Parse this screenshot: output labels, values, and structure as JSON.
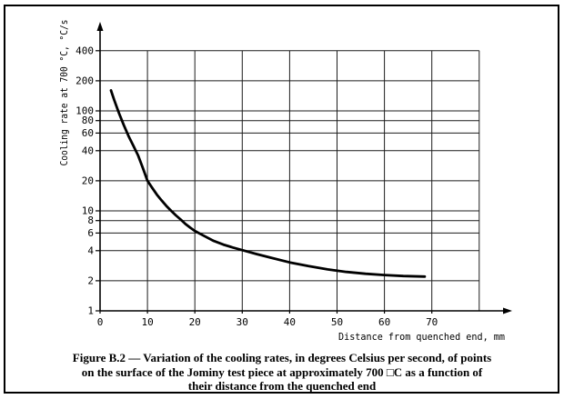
{
  "figure": {
    "caption_lines": [
      "Figure B.2 — Variation of the cooling rates, in degrees Celsius per second, of points",
      "on the surface of the Jominy test piece at approximately 700 □C as a function of",
      "their distance from the quenched end"
    ]
  },
  "chart_data": {
    "type": "line",
    "title": "",
    "xlabel": "Distance from quenched end, mm",
    "ylabel": "Cooling rate at 700 °C, °C/s",
    "x_scale": "linear",
    "y_scale": "log",
    "xlim": [
      0,
      80
    ],
    "ylim": [
      1,
      400
    ],
    "x_ticks": [
      0,
      10,
      20,
      30,
      40,
      50,
      60,
      70
    ],
    "x_grid_max": 80,
    "y_ticks": [
      1,
      2,
      4,
      6,
      8,
      10,
      20,
      40,
      60,
      80,
      100,
      200,
      400
    ],
    "grid": true,
    "legend": "none",
    "series": [
      {
        "name": "cooling-rate-curve",
        "points": [
          [
            2.3,
            160
          ],
          [
            3,
            128
          ],
          [
            4,
            95
          ],
          [
            5,
            72
          ],
          [
            6,
            56
          ],
          [
            7,
            45
          ],
          [
            8,
            36
          ],
          [
            9,
            27
          ],
          [
            10,
            20
          ],
          [
            11,
            17
          ],
          [
            12,
            14.5
          ],
          [
            13,
            12.7
          ],
          [
            14,
            11.2
          ],
          [
            15,
            10
          ],
          [
            16,
            9.0
          ],
          [
            17,
            8.2
          ],
          [
            18,
            7.4
          ],
          [
            19,
            6.8
          ],
          [
            20,
            6.3
          ],
          [
            22,
            5.6
          ],
          [
            24,
            5.0
          ],
          [
            26,
            4.6
          ],
          [
            28,
            4.3
          ],
          [
            30,
            4.05
          ],
          [
            33,
            3.7
          ],
          [
            36,
            3.4
          ],
          [
            40,
            3.05
          ],
          [
            44,
            2.8
          ],
          [
            48,
            2.6
          ],
          [
            52,
            2.45
          ],
          [
            56,
            2.35
          ],
          [
            60,
            2.28
          ],
          [
            64,
            2.23
          ],
          [
            68.5,
            2.2
          ]
        ]
      }
    ],
    "colors": {
      "ink": "#000000",
      "grid": "#1c1c1c",
      "background": "#ffffff"
    }
  }
}
